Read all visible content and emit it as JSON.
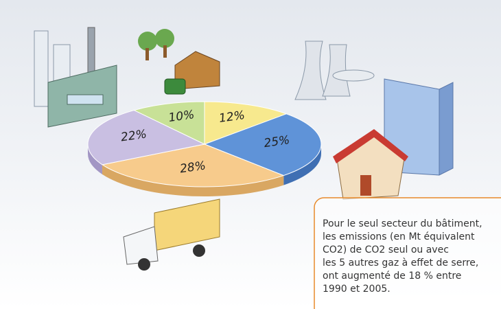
{
  "chart_data": {
    "type": "pie3d",
    "categories": [
      null,
      null,
      null,
      null,
      null
    ],
    "values": [
      12,
      25,
      28,
      22,
      10
    ],
    "value_labels": [
      "12%",
      "25%",
      "28%",
      "22%",
      "10%"
    ],
    "colors": [
      "#f7e98e",
      "#5f93d8",
      "#f7cb8c",
      "#c9bfe2",
      "#c8e197"
    ],
    "side_colors": [
      "#d9c862",
      "#3f6fb3",
      "#d9a762",
      "#a296c4",
      "#a3c071"
    ]
  },
  "annotation": [
    "Pour le seul secteur du bâtiment,",
    "les emissions (en Mt équivalent",
    "CO2) de CO2 seul ou avec",
    "les 5 autres gaz à effet de serre,",
    "ont augmenté de 18 % entre",
    "1990 et 2005."
  ]
}
